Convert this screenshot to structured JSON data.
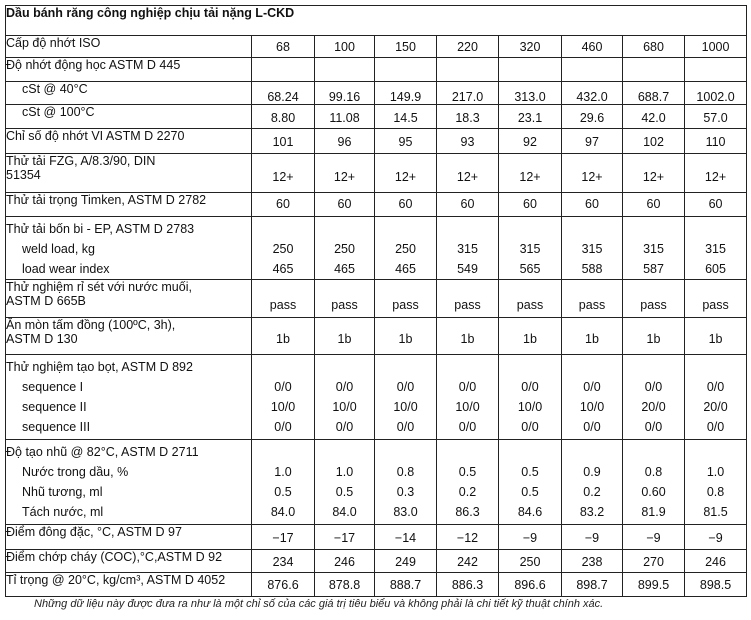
{
  "title": "Dầu bánh răng công nghiệp chịu tải nặng L-CKD",
  "grades_label": "Cấp độ nhớt ISO",
  "grades": [
    "68",
    "100",
    "150",
    "220",
    "320",
    "460",
    "680",
    "1000"
  ],
  "kv_label": "Độ nhớt động học ASTM D 445",
  "cst40_label": "cSt @ 40°C",
  "cst40": [
    "68.24",
    "99.16",
    "149.9",
    "217.0",
    "313.0",
    "432.0",
    "688.7",
    "1002.0"
  ],
  "cst100_label": "cSt @ 100°C",
  "cst100": [
    "8.80",
    "11.08",
    "14.5",
    "18.3",
    "23.1",
    "29.6",
    "42.0",
    "57.0"
  ],
  "vi_label": "Chỉ số độ nhớt VI ASTM D 2270",
  "vi": [
    "101",
    "96",
    "95",
    "93",
    "92",
    "97",
    "102",
    "110"
  ],
  "fzg_label_1": "Thử tải FZG, A/8.3/90, DIN",
  "fzg_label_2": "51354",
  "fzg": [
    "12+",
    "12+",
    "12+",
    "12+",
    "12+",
    "12+",
    "12+",
    "12+"
  ],
  "timken_label": "Thử tải trọng Timken, ASTM D 2782",
  "timken": [
    "60",
    "60",
    "60",
    "60",
    "60",
    "60",
    "60",
    "60"
  ],
  "fourball_label": "Thử tải bốn bi - EP, ASTM D 2783",
  "weld_label": "weld load, kg",
  "weld": [
    "250",
    "250",
    "250",
    "315",
    "315",
    "315",
    "315",
    "315"
  ],
  "lwi_label": "load wear index",
  "lwi": [
    "465",
    "465",
    "465",
    "549",
    "565",
    "588",
    "587",
    "605"
  ],
  "rust_label_1": "Thử nghiệm rỉ sét với nước muối,",
  "rust_label_2": "ASTM D 665B",
  "rust": [
    "pass",
    "pass",
    "pass",
    "pass",
    "pass",
    "pass",
    "pass",
    "pass"
  ],
  "copper_label_1": "Ăn mòn tấm đồng (100ºC, 3h),",
  "copper_label_2": "ASTM D 130",
  "copper": [
    "1b",
    "1b",
    "1b",
    "1b",
    "1b",
    "1b",
    "1b",
    "1b"
  ],
  "foam_label": "Thử nghiệm tạo bọt, ASTM D 892",
  "seq1_label": "sequence I",
  "seq1": [
    "0/0",
    "0/0",
    "0/0",
    "0/0",
    "0/0",
    "0/0",
    "0/0",
    "0/0"
  ],
  "seq2_label": "sequence II",
  "seq2": [
    "10/0",
    "10/0",
    "10/0",
    "10/0",
    "10/0",
    "10/0",
    "20/0",
    "20/0"
  ],
  "seq3_label": "sequence III",
  "seq3": [
    "0/0",
    "0/0",
    "0/0",
    "0/0",
    "0/0",
    "0/0",
    "0/0",
    "0/0"
  ],
  "emul_label": "Độ tạo nhũ @ 82°C, ASTM D 2711",
  "water_label": "Nước trong dầu, %",
  "water": [
    "1.0",
    "1.0",
    "0.8",
    "0.5",
    "0.5",
    "0.9",
    "0.8",
    "1.0"
  ],
  "emulsion_label": "Nhũ tương, ml",
  "emulsion": [
    "0.5",
    "0.5",
    "0.3",
    "0.2",
    "0.5",
    "0.2",
    "0.60",
    "0.8"
  ],
  "sep_label": "Tách nước, ml",
  "sep": [
    "84.0",
    "84.0",
    "83.0",
    "86.3",
    "84.6",
    "83.2",
    "81.9",
    "81.5"
  ],
  "pour_label": "Điểm đông đặc, °C, ASTM D 97",
  "pour": [
    "−17",
    "−17",
    "−14",
    "−12",
    "−9",
    "−9",
    "−9",
    "−9"
  ],
  "flash_label": "Điểm chớp cháy (COC),°C,ASTM D 92",
  "flash": [
    "234",
    "246",
    "249",
    "242",
    "250",
    "238",
    "270",
    "246"
  ],
  "density_label": "Tỉ trọng @ 20°C, kg/cm³, ASTM D 4052",
  "density": [
    "876.6",
    "878.8",
    "888.7",
    "886.3",
    "896.6",
    "898.7",
    "899.5",
    "898.5"
  ],
  "note": "Những dữ liệu này được đưa ra như là một chỉ số của các giá trị tiêu biểu và không phải là chi tiết kỹ thuật chính xác."
}
